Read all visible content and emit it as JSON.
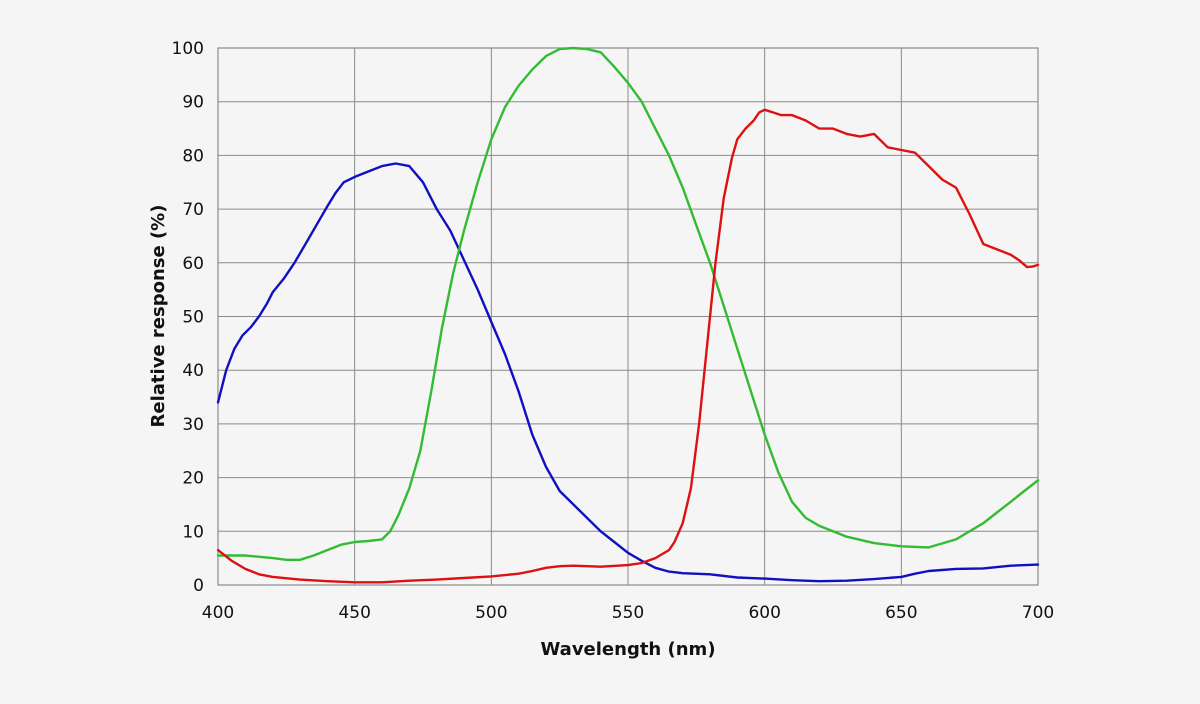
{
  "chart_data": {
    "type": "line",
    "title": "",
    "xlabel": "Wavelength (nm)",
    "ylabel": "Relative response (%)",
    "xlim": [
      400,
      700
    ],
    "ylim": [
      0,
      100
    ],
    "grid": true,
    "xticks": [
      400,
      450,
      500,
      550,
      600,
      650,
      700
    ],
    "yticks": [
      0,
      10,
      20,
      30,
      40,
      50,
      60,
      70,
      80,
      90,
      100
    ],
    "series": [
      {
        "name": "Blue",
        "color": "#1010c0",
        "points": [
          [
            400,
            34
          ],
          [
            403,
            40
          ],
          [
            406,
            44
          ],
          [
            409,
            46.5
          ],
          [
            412,
            48
          ],
          [
            415,
            50
          ],
          [
            418,
            52.5
          ],
          [
            420,
            54.5
          ],
          [
            424,
            57
          ],
          [
            428,
            60
          ],
          [
            432,
            63.5
          ],
          [
            436,
            67
          ],
          [
            440,
            70.5
          ],
          [
            443,
            73
          ],
          [
            446,
            75
          ],
          [
            450,
            76
          ],
          [
            455,
            77
          ],
          [
            460,
            78
          ],
          [
            465,
            78.5
          ],
          [
            470,
            78
          ],
          [
            475,
            75
          ],
          [
            480,
            70
          ],
          [
            485,
            66
          ],
          [
            490,
            60.5
          ],
          [
            495,
            55
          ],
          [
            500,
            49
          ],
          [
            505,
            43
          ],
          [
            510,
            36
          ],
          [
            515,
            28
          ],
          [
            520,
            22
          ],
          [
            525,
            17.5
          ],
          [
            530,
            15
          ],
          [
            535,
            12.5
          ],
          [
            540,
            10
          ],
          [
            545,
            8
          ],
          [
            550,
            6
          ],
          [
            555,
            4.5
          ],
          [
            560,
            3.2
          ],
          [
            565,
            2.5
          ],
          [
            570,
            2.2
          ],
          [
            580,
            2
          ],
          [
            590,
            1.4
          ],
          [
            600,
            1.2
          ],
          [
            610,
            0.9
          ],
          [
            620,
            0.7
          ],
          [
            630,
            0.8
          ],
          [
            640,
            1.1
          ],
          [
            650,
            1.5
          ],
          [
            655,
            2.1
          ],
          [
            660,
            2.6
          ],
          [
            670,
            3
          ],
          [
            680,
            3.1
          ],
          [
            690,
            3.6
          ],
          [
            700,
            3.8
          ]
        ]
      },
      {
        "name": "Green",
        "color": "#33bb33",
        "points": [
          [
            400,
            5.5
          ],
          [
            410,
            5.5
          ],
          [
            420,
            5
          ],
          [
            425,
            4.7
          ],
          [
            430,
            4.7
          ],
          [
            435,
            5.5
          ],
          [
            440,
            6.5
          ],
          [
            445,
            7.5
          ],
          [
            450,
            8
          ],
          [
            455,
            8.2
          ],
          [
            460,
            8.5
          ],
          [
            463,
            10
          ],
          [
            466,
            13
          ],
          [
            470,
            18
          ],
          [
            474,
            25
          ],
          [
            478,
            36
          ],
          [
            482,
            48
          ],
          [
            486,
            58
          ],
          [
            490,
            66
          ],
          [
            495,
            75
          ],
          [
            500,
            83
          ],
          [
            505,
            89
          ],
          [
            510,
            93
          ],
          [
            515,
            96
          ],
          [
            520,
            98.5
          ],
          [
            525,
            99.8
          ],
          [
            530,
            100
          ],
          [
            535,
            99.8
          ],
          [
            540,
            99.2
          ],
          [
            545,
            96.5
          ],
          [
            550,
            93.5
          ],
          [
            555,
            90
          ],
          [
            560,
            85
          ],
          [
            565,
            80
          ],
          [
            570,
            74
          ],
          [
            575,
            67
          ],
          [
            580,
            60
          ],
          [
            585,
            52
          ],
          [
            590,
            44
          ],
          [
            595,
            36
          ],
          [
            600,
            28
          ],
          [
            605,
            21
          ],
          [
            610,
            15.5
          ],
          [
            615,
            12.5
          ],
          [
            620,
            11
          ],
          [
            625,
            10
          ],
          [
            630,
            9
          ],
          [
            640,
            7.8
          ],
          [
            650,
            7.2
          ],
          [
            660,
            7
          ],
          [
            670,
            8.5
          ],
          [
            680,
            11.5
          ],
          [
            685,
            13.5
          ],
          [
            690,
            15.5
          ],
          [
            695,
            17.5
          ],
          [
            700,
            19.5
          ]
        ]
      },
      {
        "name": "Red",
        "color": "#dd1111",
        "points": [
          [
            400,
            6.5
          ],
          [
            405,
            4.5
          ],
          [
            410,
            3
          ],
          [
            415,
            2
          ],
          [
            420,
            1.5
          ],
          [
            430,
            1
          ],
          [
            440,
            0.7
          ],
          [
            450,
            0.5
          ],
          [
            460,
            0.5
          ],
          [
            470,
            0.8
          ],
          [
            480,
            1
          ],
          [
            490,
            1.3
          ],
          [
            500,
            1.6
          ],
          [
            510,
            2.1
          ],
          [
            515,
            2.6
          ],
          [
            520,
            3.2
          ],
          [
            525,
            3.5
          ],
          [
            530,
            3.6
          ],
          [
            535,
            3.5
          ],
          [
            540,
            3.4
          ],
          [
            550,
            3.7
          ],
          [
            555,
            4.1
          ],
          [
            560,
            5
          ],
          [
            565,
            6.5
          ],
          [
            567,
            8
          ],
          [
            570,
            11.5
          ],
          [
            573,
            18
          ],
          [
            576,
            30
          ],
          [
            579,
            45
          ],
          [
            582,
            60
          ],
          [
            585,
            72
          ],
          [
            588,
            79.5
          ],
          [
            590,
            83
          ],
          [
            593,
            85
          ],
          [
            596,
            86.5
          ],
          [
            598,
            88
          ],
          [
            600,
            88.5
          ],
          [
            603,
            88
          ],
          [
            606,
            87.5
          ],
          [
            610,
            87.5
          ],
          [
            615,
            86.5
          ],
          [
            620,
            85
          ],
          [
            625,
            85
          ],
          [
            630,
            84
          ],
          [
            635,
            83.5
          ],
          [
            640,
            84
          ],
          [
            645,
            81.5
          ],
          [
            650,
            81
          ],
          [
            655,
            80.5
          ],
          [
            660,
            78
          ],
          [
            665,
            75.5
          ],
          [
            670,
            74
          ],
          [
            675,
            69
          ],
          [
            680,
            63.5
          ],
          [
            685,
            62.5
          ],
          [
            690,
            61.5
          ],
          [
            693,
            60.5
          ],
          [
            696,
            59.2
          ],
          [
            698,
            59.3
          ],
          [
            700,
            59.6
          ]
        ]
      }
    ]
  }
}
